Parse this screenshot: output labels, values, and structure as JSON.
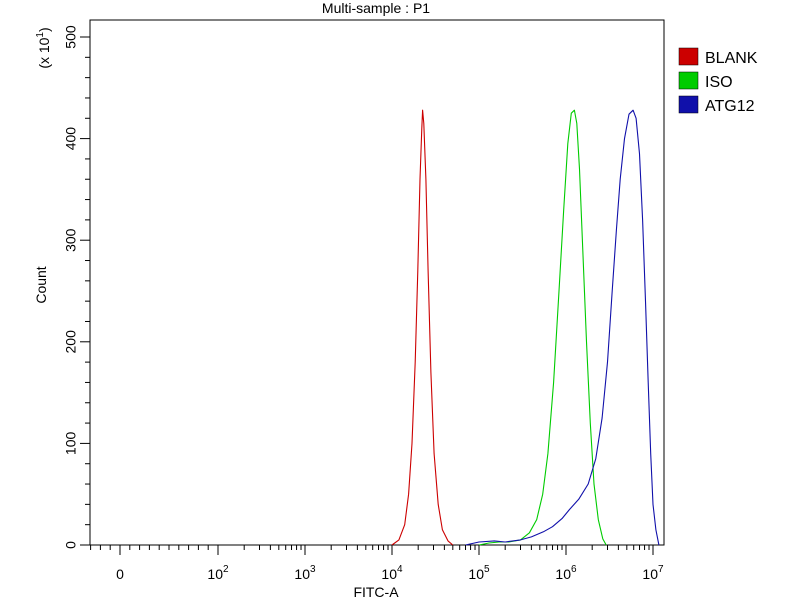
{
  "chart_data": {
    "type": "line",
    "title": "Multi-sample : P1",
    "xlabel": "FITC-A",
    "ylabel": "Count",
    "y_multiplier_label": "(x 10^1)",
    "xscale": "biexponential",
    "x_ticks": [
      {
        "value": 0,
        "label": "0",
        "sup": ""
      },
      {
        "value": 100,
        "label": "10",
        "sup": "2"
      },
      {
        "value": 1000,
        "label": "10",
        "sup": "3"
      },
      {
        "value": 10000,
        "label": "10",
        "sup": "4"
      },
      {
        "value": 100000,
        "label": "10",
        "sup": "5"
      },
      {
        "value": 1000000,
        "label": "10",
        "sup": "6"
      },
      {
        "value": 10000000,
        "label": "10",
        "sup": "7"
      }
    ],
    "y_ticks": [
      0,
      100,
      200,
      300,
      400,
      500
    ],
    "ylim": [
      0,
      510
    ],
    "legend_position": "top-right",
    "series": [
      {
        "name": "BLANK",
        "color": "#cc0000",
        "points": [
          [
            10000,
            0
          ],
          [
            12000,
            5
          ],
          [
            14000,
            20
          ],
          [
            15500,
            50
          ],
          [
            17000,
            100
          ],
          [
            18500,
            180
          ],
          [
            19800,
            270
          ],
          [
            21000,
            360
          ],
          [
            22000,
            410
          ],
          [
            22500,
            428
          ],
          [
            23200,
            415
          ],
          [
            24500,
            360
          ],
          [
            26000,
            270
          ],
          [
            28000,
            170
          ],
          [
            30500,
            90
          ],
          [
            34000,
            40
          ],
          [
            38000,
            15
          ],
          [
            44000,
            4
          ],
          [
            50000,
            0
          ]
        ]
      },
      {
        "name": "ISO",
        "color": "#00cc00",
        "points": [
          [
            100000,
            0
          ],
          [
            130000,
            2
          ],
          [
            170000,
            3
          ],
          [
            220000,
            3
          ],
          [
            300000,
            5
          ],
          [
            380000,
            12
          ],
          [
            460000,
            25
          ],
          [
            540000,
            50
          ],
          [
            620000,
            90
          ],
          [
            720000,
            160
          ],
          [
            830000,
            250
          ],
          [
            940000,
            330
          ],
          [
            1050000,
            395
          ],
          [
            1150000,
            425
          ],
          [
            1250000,
            428
          ],
          [
            1330000,
            415
          ],
          [
            1430000,
            370
          ],
          [
            1560000,
            290
          ],
          [
            1720000,
            200
          ],
          [
            1900000,
            120
          ],
          [
            2100000,
            60
          ],
          [
            2350000,
            25
          ],
          [
            2650000,
            6
          ],
          [
            2900000,
            0
          ]
        ]
      },
      {
        "name": "ATG12",
        "color": "#1010aa",
        "points": [
          [
            70000,
            0
          ],
          [
            100000,
            3
          ],
          [
            150000,
            4
          ],
          [
            200000,
            3
          ],
          [
            300000,
            5
          ],
          [
            400000,
            8
          ],
          [
            550000,
            13
          ],
          [
            700000,
            18
          ],
          [
            900000,
            26
          ],
          [
            1100000,
            35
          ],
          [
            1400000,
            45
          ],
          [
            1800000,
            60
          ],
          [
            2200000,
            85
          ],
          [
            2600000,
            125
          ],
          [
            3000000,
            180
          ],
          [
            3400000,
            250
          ],
          [
            3800000,
            310
          ],
          [
            4200000,
            360
          ],
          [
            4700000,
            400
          ],
          [
            5300000,
            424
          ],
          [
            5900000,
            428
          ],
          [
            6400000,
            420
          ],
          [
            7000000,
            385
          ],
          [
            7600000,
            320
          ],
          [
            8200000,
            240
          ],
          [
            8800000,
            160
          ],
          [
            9400000,
            90
          ],
          [
            10000000,
            40
          ],
          [
            10800000,
            15
          ],
          [
            11700000,
            0
          ]
        ]
      }
    ]
  }
}
